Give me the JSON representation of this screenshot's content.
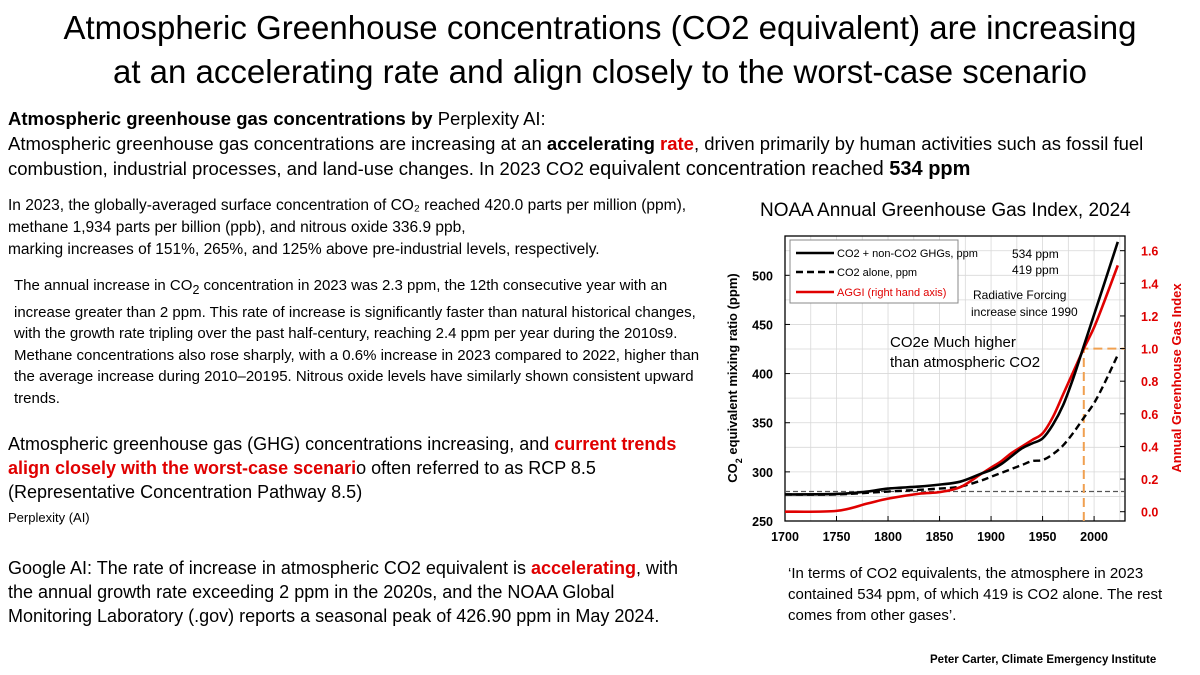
{
  "title": {
    "line1": "Atmospheric Greenhouse concentrations (CO2 equivalent) are increasing",
    "line2": "at an accelerating rate and align closely to the worst-case scenario"
  },
  "intro": {
    "lead": "Atmospheric greenhouse gas concentrations by",
    "lead_source": " Perplexity AI:",
    "text_a": "Atmospheric greenhouse gas concentrations are increasing at an ",
    "accelerating": "accelerating",
    "rate": "rate",
    "text_b": ", driven primarily by human activities such as fossil fuel combustion, industrial processes, and land-use changes. In 2023 CO2 ",
    "text_c": "equivalent concentration reached ",
    "value": "534 ppm"
  },
  "stats": {
    "line1": "In 2023, the globally-averaged surface concentration of CO₂ reached 420.0 parts per million (ppm),",
    "line2": "methane 1,934 parts per billion (ppb), and nitrous oxide 336.9 ppb,",
    "line3": "marking increases of 151%, 265%, and 125% above pre-industrial levels, respectively."
  },
  "annual": {
    "a": "The annual increase in CO",
    "sub": "2",
    "b": " concentration in 2023 was 2.3 ppm, the 12th consecutive year with an increase greater than 2 ppm. This rate of increase is significantly faster than natural historical changes, with the growth rate tripling over the past half-century, reaching 2.4 ppm per year during the 2010s9.",
    "methane": "Methane concentrations also rose sharply, with a 0.6% increase in 2023 compared to 2022, higher than the average increase during 2010–20195. Nitrous oxide levels have similarly shown consistent upward trends."
  },
  "ghg": {
    "a": "Atmospheric greenhouse gas (GHG) concentrations  increasing, and ",
    "red": "current trends align closely with the worst-case scenari",
    "b": "o often referred to as RCP 8.5 (Representative Concentration Pathway 8.5)",
    "source": "Perplexity (AI)"
  },
  "google": {
    "a": "Google AI: The rate of increase in atmospheric CO2 equivalent is ",
    "red": "accelerating",
    "b": ", with the annual growth rate exceeding 2 ppm in the 2020s, and the NOAA Global Monitoring Laboratory (.gov) reports a seasonal peak of 426.90 ppm in May 2024."
  },
  "quote": "‘In terms of CO2 equivalents, the atmosphere in 2023 contained 534 ppm, of which 419 is CO2 alone. The rest comes from other gases’.",
  "credit": "Peter Carter, Climate Emergency Institute",
  "chart_title": "NOAA Annual Greenhouse Gas Index, 2024",
  "colors": {
    "red": "#e00000",
    "black": "#000000",
    "orange": "#f0a050",
    "grid": "#d8d8d8"
  },
  "chart_data": {
    "type": "line",
    "title": "NOAA Annual Greenhouse Gas Index, 2024",
    "xlabel": "",
    "ylabel": "CO2 equivalent mixing ratio (ppm)",
    "ylabel_main": "CO",
    "ylabel_sub": "2",
    "ylabel_rest": " equivalent mixing ratio (ppm)",
    "y2label": "Annual Greenhouse Gas Index",
    "xlim": [
      1700,
      2030
    ],
    "ylim": [
      250,
      540
    ],
    "y2lim": [
      -0.057,
      1.69
    ],
    "xticks": [
      1700,
      1750,
      1800,
      1850,
      1900,
      1950,
      2000
    ],
    "yticks": [
      250,
      300,
      350,
      400,
      450,
      500
    ],
    "y2ticks": [
      0.0,
      0.2,
      0.4,
      0.6,
      0.8,
      1.0,
      1.2,
      1.4,
      1.6
    ],
    "y2ticklabels": [
      "0.0",
      "0.2",
      "0.4",
      "0.6",
      "0.8",
      "1.0",
      "1.2",
      "1.4",
      "1.6"
    ],
    "grid": true,
    "legend_position": "top-left",
    "series": [
      {
        "name": "CO2 + non-CO2 GHGs, ppm",
        "axis": "left",
        "style": "solid",
        "color": "#000000",
        "x": [
          1700,
          1750,
          1780,
          1800,
          1830,
          1850,
          1870,
          1890,
          1900,
          1910,
          1920,
          1930,
          1940,
          1950,
          1960,
          1970,
          1980,
          1990,
          2000,
          2010,
          2023
        ],
        "y": [
          277,
          277.5,
          280,
          283,
          285,
          287,
          290,
          298,
          302,
          308,
          316,
          324,
          329,
          334,
          348,
          368,
          396,
          428,
          460,
          492,
          534
        ]
      },
      {
        "name": "CO2 alone, ppm",
        "axis": "left",
        "style": "dashed",
        "color": "#000000",
        "x": [
          1700,
          1750,
          1800,
          1850,
          1870,
          1890,
          1900,
          1910,
          1920,
          1930,
          1940,
          1950,
          1960,
          1970,
          1980,
          1990,
          2000,
          2010,
          2023
        ],
        "y": [
          277,
          277,
          280,
          283,
          285,
          291,
          295,
          299,
          303,
          307,
          311,
          312,
          318,
          327,
          340,
          355,
          370,
          390,
          419
        ]
      },
      {
        "name": "AGGI (right hand axis)",
        "axis": "right",
        "style": "solid",
        "color": "#e00000",
        "x": [
          1700,
          1750,
          1780,
          1800,
          1830,
          1850,
          1870,
          1890,
          1900,
          1910,
          1920,
          1930,
          1940,
          1950,
          1960,
          1970,
          1980,
          1990,
          2000,
          2010,
          2023
        ],
        "y": [
          0.0,
          0.005,
          0.05,
          0.08,
          0.11,
          0.12,
          0.15,
          0.23,
          0.27,
          0.31,
          0.36,
          0.4,
          0.44,
          0.48,
          0.58,
          0.72,
          0.86,
          1.0,
          1.13,
          1.29,
          1.51
        ]
      }
    ],
    "legend": [
      "CO2 + non-CO2 GHGs, ppm",
      "CO2 alone, ppm",
      "AGGI (right hand axis)"
    ],
    "annotations": {
      "val1": "534 ppm",
      "val2": "419 ppm",
      "rf1": "Radiative Forcing",
      "rf2": "increase since 1990",
      "co2e1": "CO2e Much higher",
      "co2e2": "than atmospheric CO2"
    },
    "reference_baseline": 280,
    "marker_year": 1990,
    "marker_aggi": 1.0
  }
}
